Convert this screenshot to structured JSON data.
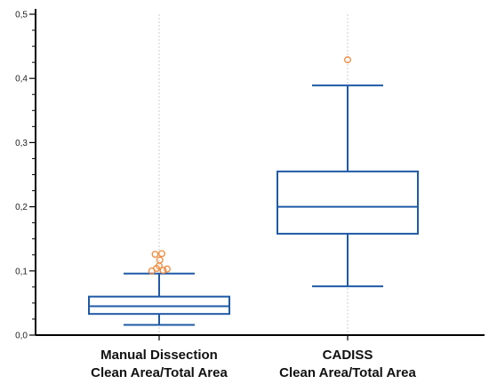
{
  "chart_data": {
    "type": "box",
    "title": "",
    "xlabel": "",
    "ylabel": "",
    "ylim": [
      0,
      0.5
    ],
    "yticks": [
      "0,0",
      "0,1",
      "0,2",
      "0,3",
      "0,4",
      "0,5"
    ],
    "y_minor_step": 0.025,
    "grid": "vertical-dashed",
    "colors": {
      "box": "#1f5aa6",
      "outlier": "#f08a3c",
      "axis": "#000000",
      "grid": "#cccccc"
    },
    "categories": [
      {
        "line1": "Manual Dissection",
        "line2": "Clean Area/Total Area"
      },
      {
        "line1": "CADISS",
        "line2": "Clean Area/Total Area"
      }
    ],
    "boxes": [
      {
        "whisker_low": 0.016,
        "q1": 0.033,
        "median": 0.045,
        "q3": 0.06,
        "whisker_high": 0.096,
        "outliers": [
          {
            "offset": -0.55,
            "y": 0.1
          },
          {
            "offset": -0.2,
            "y": 0.104
          },
          {
            "offset": 0.0,
            "y": 0.108
          },
          {
            "offset": 0.3,
            "y": 0.101
          },
          {
            "offset": 0.6,
            "y": 0.103
          },
          {
            "offset": 0.05,
            "y": 0.117
          },
          {
            "offset": -0.3,
            "y": 0.126
          },
          {
            "offset": 0.2,
            "y": 0.127
          }
        ]
      },
      {
        "whisker_low": 0.076,
        "q1": 0.158,
        "median": 0.2,
        "q3": 0.255,
        "whisker_high": 0.389,
        "outliers": [
          {
            "offset": 0.0,
            "y": 0.429
          }
        ]
      }
    ]
  }
}
